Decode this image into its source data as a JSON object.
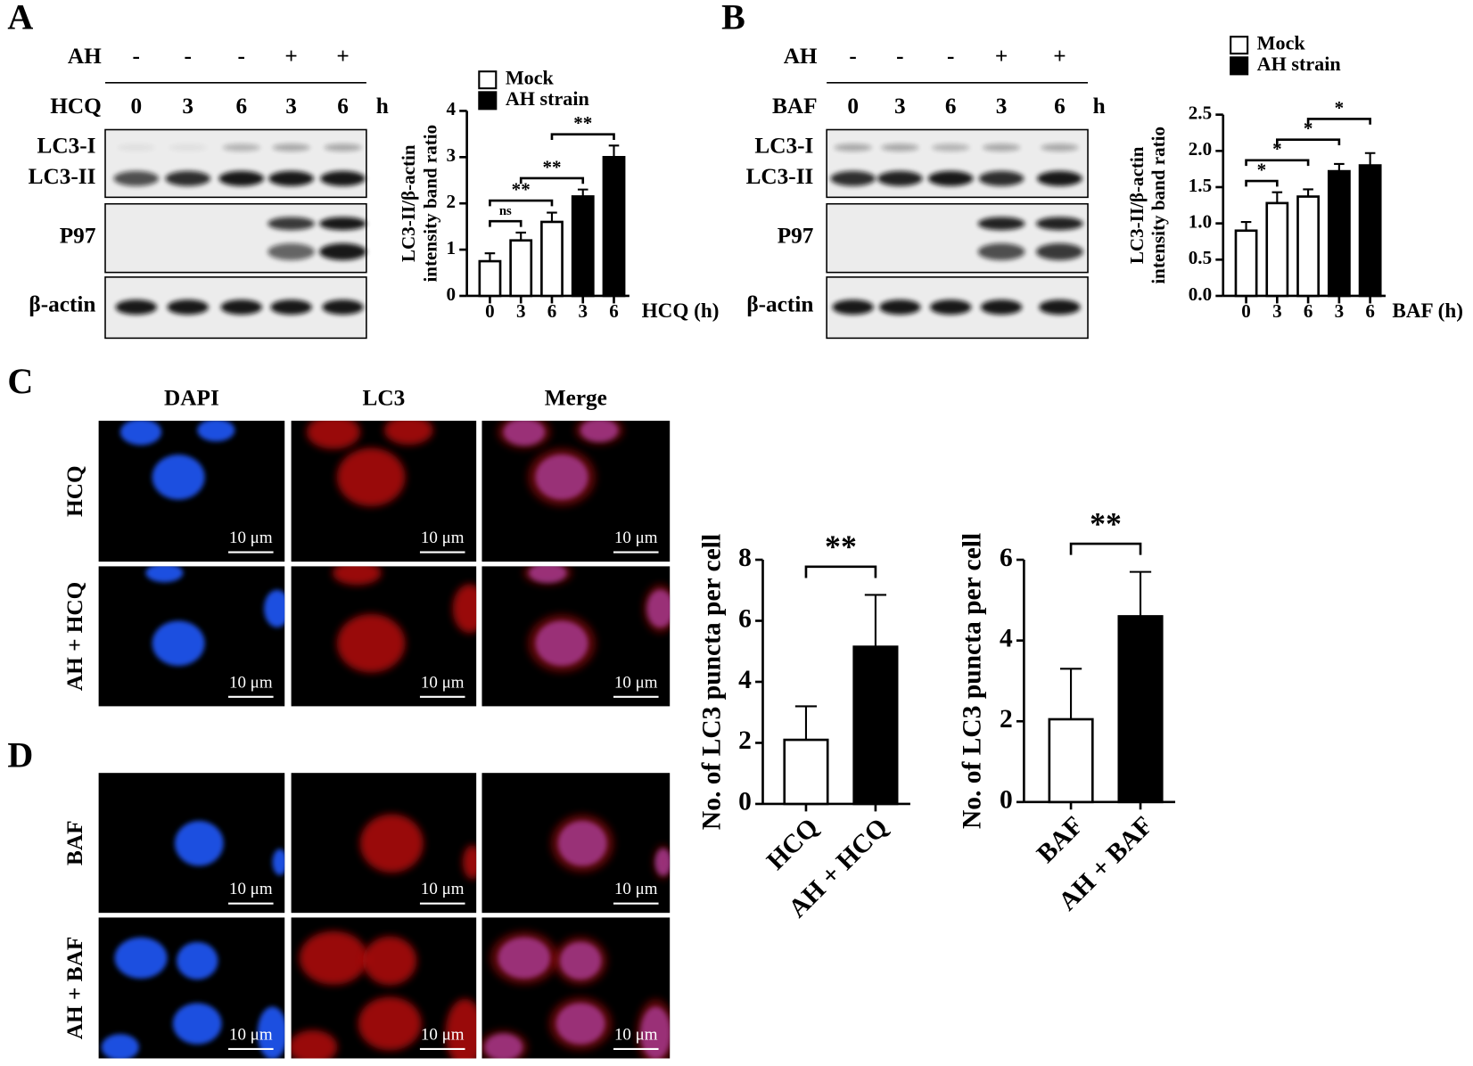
{
  "chart_data": [
    {
      "type": "bar",
      "categories": [
        "0",
        "3",
        "6",
        "3",
        "6"
      ],
      "series": [
        {
          "name": "Mock",
          "color": "#ffffff",
          "values": [
            0.75,
            1.2,
            1.6,
            null,
            null
          ],
          "errors": [
            0.17,
            0.17,
            0.2,
            null,
            null
          ]
        },
        {
          "name": "AH strain",
          "color": "#000000",
          "values": [
            null,
            null,
            null,
            2.15,
            3.0
          ],
          "errors": [
            null,
            null,
            null,
            0.15,
            0.25
          ]
        }
      ],
      "ylim": [
        0,
        4
      ],
      "yticks": [
        0,
        1,
        2,
        3,
        4
      ],
      "xlabel": "HCQ (h)",
      "ylabel": [
        "LC3-II/β-actin",
        "intensity band ratio"
      ],
      "brackets": [
        {
          "text": "ns",
          "between": [
            0,
            1
          ]
        },
        {
          "text": "**",
          "between": [
            0,
            2
          ]
        },
        {
          "text": "**",
          "between": [
            1,
            3
          ]
        },
        {
          "text": "**",
          "between": [
            2,
            4
          ]
        }
      ]
    },
    {
      "type": "bar",
      "categories": [
        "0",
        "3",
        "6",
        "3",
        "6"
      ],
      "series": [
        {
          "name": "Mock",
          "color": "#ffffff",
          "values": [
            0.9,
            1.28,
            1.37,
            null,
            null
          ],
          "errors": [
            0.12,
            0.15,
            0.1,
            null,
            null
          ]
        },
        {
          "name": "AH strain",
          "color": "#000000",
          "values": [
            null,
            null,
            null,
            1.72,
            1.8
          ],
          "errors": [
            null,
            null,
            null,
            0.1,
            0.17
          ]
        }
      ],
      "ylim": [
        0,
        2.5
      ],
      "yticks": [
        {
          "value": 0,
          "label": "0.0"
        },
        0.5,
        {
          "value": 1,
          "label": "1.0"
        },
        1.5,
        {
          "value": 2,
          "label": "2.0"
        },
        2.5
      ],
      "xlabel": "BAF (h)",
      "ylabel": [
        "LC3-II/β-actin",
        "intensity band ratio"
      ],
      "brackets": [
        {
          "text": "*",
          "between": [
            0,
            1
          ]
        },
        {
          "text": "*",
          "between": [
            0,
            2
          ]
        },
        {
          "text": "*",
          "between": [
            1,
            3
          ]
        },
        {
          "text": "*",
          "between": [
            2,
            4
          ]
        }
      ]
    },
    {
      "type": "bar",
      "categories": [
        "HCQ",
        "AH + HCQ"
      ],
      "series": [
        {
          "colors": [
            "#ffffff",
            "#000000"
          ],
          "values": [
            2.1,
            5.15
          ],
          "errors": [
            1.1,
            1.7
          ]
        }
      ],
      "ylim": [
        0,
        8
      ],
      "yticks": [
        0,
        2,
        4,
        6,
        8
      ],
      "ylabel": [
        "No. of LC3 puncta per cell"
      ],
      "brackets": [
        {
          "text": "**",
          "between": [
            0,
            1
          ]
        }
      ]
    },
    {
      "type": "bar",
      "categories": [
        "BAF",
        "AH + BAF"
      ],
      "series": [
        {
          "colors": [
            "#ffffff",
            "#000000"
          ],
          "values": [
            2.05,
            4.6
          ],
          "errors": [
            1.25,
            1.1
          ]
        }
      ],
      "ylim": [
        0,
        6
      ],
      "yticks": [
        0,
        2,
        4,
        6
      ],
      "ylabel": [
        "No. of LC3 puncta per cell"
      ],
      "brackets": [
        {
          "text": "**",
          "between": [
            0,
            1
          ]
        }
      ]
    }
  ],
  "blots": [
    {
      "label": "A",
      "rows": [
        {
          "name": "AH",
          "values": [
            "-",
            "-",
            "-",
            "+",
            "+"
          ]
        },
        {
          "name": "HCQ",
          "values": [
            "0",
            "3",
            "6",
            "3",
            "6"
          ],
          "unit": "h"
        }
      ],
      "bands": [
        "LC3-I",
        "LC3-II",
        "P97",
        "β-actin"
      ]
    },
    {
      "label": "B",
      "rows": [
        {
          "name": "AH",
          "values": [
            "-",
            "-",
            "-",
            "+",
            "+"
          ]
        },
        {
          "name": "BAF",
          "values": [
            "0",
            "3",
            "6",
            "3",
            "6"
          ],
          "unit": "h"
        }
      ],
      "bands": [
        "LC3-I",
        "LC3-II",
        "P97",
        "β-actin"
      ]
    }
  ],
  "micrographs": [
    {
      "label": "C",
      "columns": [
        "DAPI",
        "LC3",
        "Merge"
      ],
      "rows": [
        "HCQ",
        "AH + HCQ"
      ],
      "scale_bar": "10 μm"
    },
    {
      "label": "D",
      "rows": [
        "BAF",
        "AH + BAF"
      ],
      "scale_bar": "10 μm"
    }
  ]
}
